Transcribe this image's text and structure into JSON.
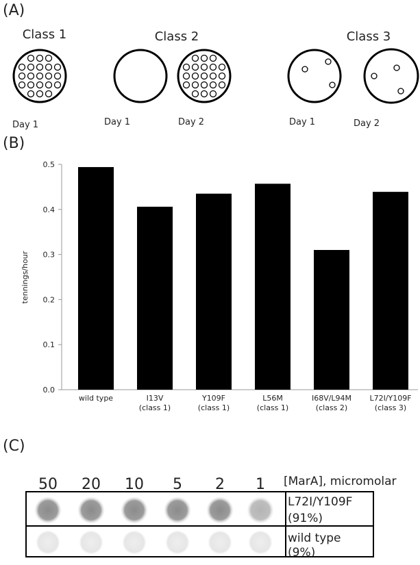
{
  "panel_a": {
    "label": "(A)",
    "classes": [
      {
        "title": "Class 1",
        "days": [
          "Day 1"
        ]
      },
      {
        "title": "Class 2",
        "days": [
          "Day 1",
          "Day 2"
        ]
      },
      {
        "title": "Class 3",
        "days": [
          "Day 1",
          "Day 2"
        ]
      }
    ]
  },
  "panel_b": {
    "label": "(B)"
  },
  "chart_data": {
    "type": "bar",
    "y_label": "tennings/hour",
    "categories": [
      "wild type",
      "I13V",
      "Y109F",
      "L56M",
      "I68V/L94M",
      "L72I/Y109F"
    ],
    "category_notes": [
      null,
      "(class 1)",
      "(class 1)",
      "(class 1)",
      "(class 2)",
      "(class 3)"
    ],
    "values": [
      0.494,
      0.406,
      0.435,
      0.457,
      0.31,
      0.439
    ],
    "color": "#000000",
    "ylim": [
      0,
      0.5
    ],
    "yticks": [
      {
        "value": 0,
        "label": "0.0"
      },
      0.1,
      0.2,
      0.3,
      0.4,
      0.5
    ]
  },
  "panel_c": {
    "label": "(C)",
    "concentrations": [
      "50",
      "20",
      "10",
      "5",
      "2",
      "1"
    ],
    "concentration_label": "[MarA], micromolar",
    "rows": [
      {
        "name": "L72I/Y109F",
        "percent": "(91%)"
      },
      {
        "name": "wild type",
        "percent": "(9%)"
      }
    ]
  }
}
